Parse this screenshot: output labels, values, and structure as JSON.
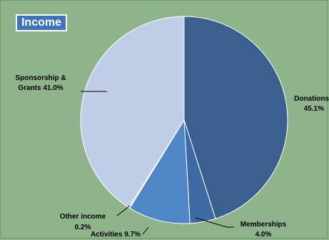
{
  "chart_data": {
    "type": "pie",
    "title": "Income",
    "slices": [
      {
        "label": "Donations",
        "value": 45.1,
        "display": "45.1%",
        "color": "#3b5f8e"
      },
      {
        "label": "Memberships",
        "value": 4.0,
        "display": "4.0%",
        "color": "#3d6aa3"
      },
      {
        "label": "Activities",
        "value": 9.7,
        "display": "9.7%",
        "color": "#4f86c6"
      },
      {
        "label": "Other income",
        "value": 0.2,
        "display": "0.2%",
        "color": "#c3d3ea"
      },
      {
        "label": "Sponsorship & Grants",
        "value": 41.0,
        "display": "41.0%",
        "color": "#bfcde6"
      }
    ],
    "background": "#8fb48c",
    "title_box_color": "#3e74b8"
  }
}
